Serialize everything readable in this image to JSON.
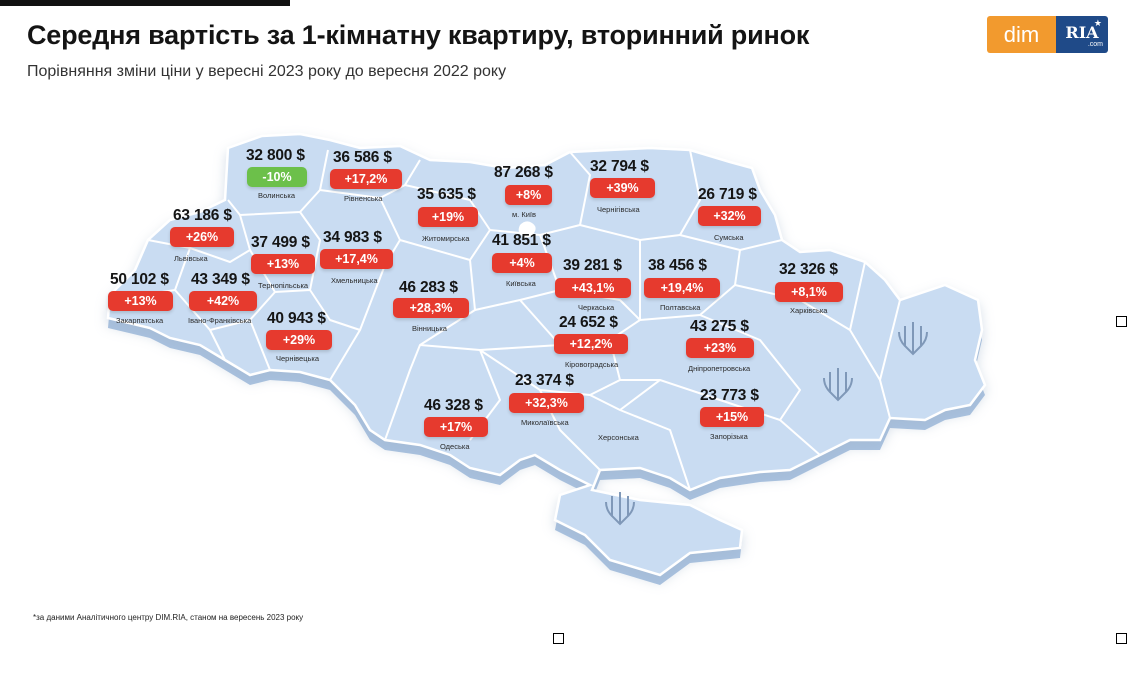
{
  "header": {
    "title": "Середня вартість за 1-кімнатну квартиру, вторинний ринок",
    "subtitle": "Порівняння зміни ціни у вересні 2023 року до вересня 2022 року"
  },
  "logo": {
    "dim": "dim",
    "ria": "RIA",
    "com": ".com"
  },
  "colors": {
    "increase": "#e63a2e",
    "decrease": "#6cc04a",
    "map_fill": "#c9dcf2",
    "map_border": "#ffffff",
    "map_side": "#a9c2e0",
    "logo_dim": "#f29a2e",
    "logo_ria": "#1f4a88"
  },
  "regions": [
    {
      "name": "Волинська",
      "price": "32 800 $",
      "change": "-10%",
      "trend": "down"
    },
    {
      "name": "Рівненська",
      "price": "36 586 $",
      "change": "+17,2%",
      "trend": "up"
    },
    {
      "name": "м. Київ",
      "price": "87 268 $",
      "change": "+8%",
      "trend": "up"
    },
    {
      "name": "Чернігівська",
      "price": "32 794 $",
      "change": "+39%",
      "trend": "up"
    },
    {
      "name": "Житомирська",
      "price": "35 635 $",
      "change": "+19%",
      "trend": "up"
    },
    {
      "name": "Сумська",
      "price": "26 719 $",
      "change": "+32%",
      "trend": "up"
    },
    {
      "name": "Львівська",
      "price": "63 186 $",
      "change": "+26%",
      "trend": "up"
    },
    {
      "name": "Тернопільська",
      "price": "37 499 $",
      "change": "+13%",
      "trend": "up"
    },
    {
      "name": "Хмельницька",
      "price": "34 983 $",
      "change": "+17,4%",
      "trend": "up"
    },
    {
      "name": "Київська",
      "price": "41 851 $",
      "change": "+4%",
      "trend": "up"
    },
    {
      "name": "Закарпатська",
      "price": "50 102 $",
      "change": "+13%",
      "trend": "up"
    },
    {
      "name": "Івано-Франківська",
      "price": "43 349 $",
      "change": "+42%",
      "trend": "up"
    },
    {
      "name": "Вінницька",
      "price": "46 283 $",
      "change": "+28,3%",
      "trend": "up"
    },
    {
      "name": "Черкаська",
      "price": "39 281 $",
      "change": "+43,1%",
      "trend": "up"
    },
    {
      "name": "Полтавська",
      "price": "38 456 $",
      "change": "+19,4%",
      "trend": "up"
    },
    {
      "name": "Харківська",
      "price": "32 326 $",
      "change": "+8,1%",
      "trend": "up"
    },
    {
      "name": "Чернівецька",
      "price": "40 943 $",
      "change": "+29%",
      "trend": "up"
    },
    {
      "name": "Кіровоградська",
      "price": "24 652 $",
      "change": "+12,2%",
      "trend": "up"
    },
    {
      "name": "Дніпропетровська",
      "price": "43 275 $",
      "change": "+23%",
      "trend": "up"
    },
    {
      "name": "Миколаївська",
      "price": "23 374 $",
      "change": "+32,3%",
      "trend": "up"
    },
    {
      "name": "Одеська",
      "price": "46 328 $",
      "change": "+17%",
      "trend": "up"
    },
    {
      "name": "Запорізька",
      "price": "23 773 $",
      "change": "+15%",
      "trend": "up"
    },
    {
      "name": "Херсонська",
      "price": "",
      "change": "",
      "trend": "none"
    }
  ],
  "footnote": "*за даними Аналітичного центру DIM.RIA, станом на вересень 2023 року"
}
